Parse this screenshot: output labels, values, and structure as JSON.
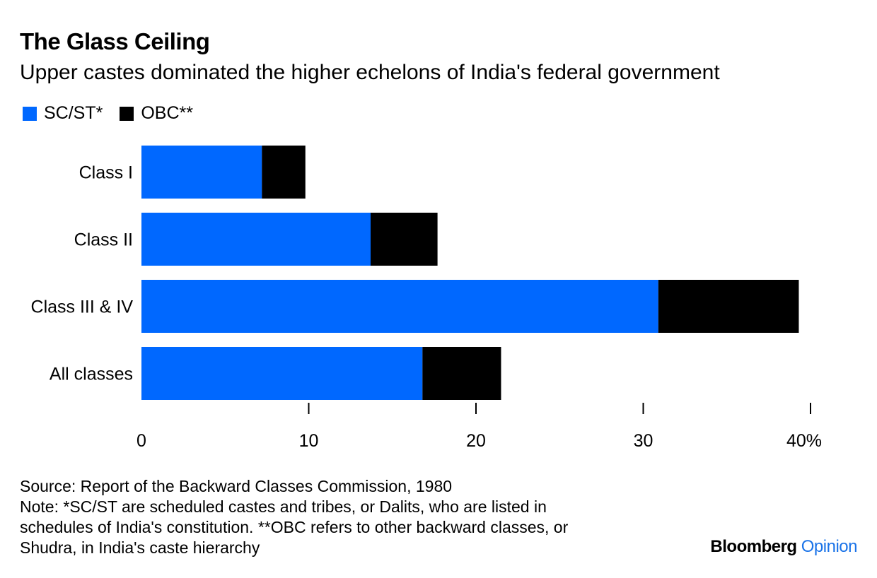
{
  "chart_data": {
    "type": "bar",
    "orientation": "horizontal",
    "stacked": true,
    "title": "The Glass Ceiling",
    "subtitle": "Upper castes dominated the higher echelons of India's federal government",
    "categories": [
      "Class I",
      "Class II",
      "Class III & IV",
      "All classes"
    ],
    "series": [
      {
        "name": "SC/ST*",
        "color": "#0068ff",
        "values": [
          7.2,
          13.7,
          30.9,
          16.8
        ]
      },
      {
        "name": "OBC**",
        "color": "#000000",
        "values": [
          2.6,
          4.0,
          8.4,
          4.7
        ]
      }
    ],
    "xlim": [
      0,
      40
    ],
    "xticks": [
      {
        "value": 0,
        "label": "0"
      },
      {
        "value": 10,
        "label": "10"
      },
      {
        "value": 20,
        "label": "20"
      },
      {
        "value": 30,
        "label": "30"
      },
      {
        "value": 40,
        "label": "40%"
      }
    ],
    "legend_position": "top-left",
    "grid": false
  },
  "notes": {
    "source": "Source: Report of the Backward Classes Commission, 1980",
    "note_lines": [
      "Note: *SC/ST are scheduled castes and tribes, or Dalits, who are listed in",
      "schedules of India's constitution. **OBC refers to other backward classes, or",
      "Shudra, in India's caste hierarchy"
    ]
  },
  "brand": {
    "name": "Bloomberg",
    "section": "Opinion"
  }
}
